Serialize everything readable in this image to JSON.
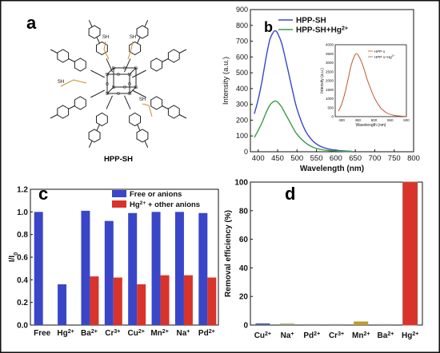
{
  "panel_labels": {
    "a": "a",
    "b": "b",
    "c": "c",
    "d": "d"
  },
  "structure": {
    "name": "HPP-SH",
    "atom_labels": {
      "si": "Si",
      "o": "O",
      "sh": "SH"
    }
  },
  "colors": {
    "blue": "#3a46c8",
    "green": "#3e9a4a",
    "inset_line": "#c0562c",
    "bar_blue": "#3a46c8",
    "bar_red": "#d9342b",
    "bar_red_dark": "#b5553d",
    "frame": "#111111"
  },
  "chart_data": [
    {
      "panel": "b",
      "type": "line",
      "xlabel": "Wavelength (nm)",
      "ylabel": "Intensity (a.u.)",
      "xlim": [
        380,
        800
      ],
      "ylim": [
        0,
        900
      ],
      "xticks": [
        400,
        450,
        500,
        550,
        600,
        650,
        700,
        750,
        800
      ],
      "yticks": [
        0,
        100,
        200,
        300,
        400,
        500,
        600,
        700,
        800,
        900
      ],
      "legend_position": "top-right",
      "series": [
        {
          "name": "HPP-SH",
          "color": "#3a46c8",
          "x": [
            390,
            400,
            410,
            420,
            430,
            440,
            445,
            450,
            460,
            470,
            480,
            490,
            500,
            520,
            540,
            560,
            580,
            600,
            620,
            640
          ],
          "y": [
            240,
            330,
            450,
            590,
            710,
            760,
            765,
            750,
            690,
            590,
            480,
            370,
            270,
            140,
            70,
            35,
            18,
            10,
            5,
            3
          ]
        },
        {
          "name": "HPP-SH+Hg2+",
          "label_parts": {
            "base": "HPP-SH+Hg",
            "sup": "2+"
          },
          "color": "#3e9a4a",
          "x": [
            390,
            400,
            410,
            420,
            430,
            440,
            445,
            450,
            460,
            470,
            480,
            490,
            500,
            520,
            540,
            560,
            580,
            600,
            620,
            640
          ],
          "y": [
            90,
            135,
            185,
            245,
            295,
            318,
            320,
            315,
            285,
            240,
            195,
            150,
            110,
            60,
            30,
            15,
            8,
            5,
            3,
            2
          ]
        }
      ],
      "inset": {
        "type": "line",
        "xlabel": "Wavelength (nm)",
        "ylabel": "Intensity (a.u.)",
        "xlim": [
          380,
          600
        ],
        "ylim": [
          0,
          4000
        ],
        "xticks": [
          400,
          450,
          500,
          550,
          600
        ],
        "yticks": [
          0,
          500,
          1000,
          1500,
          2000,
          2500,
          3000,
          3500,
          4000
        ],
        "legend": [
          "HPP-1",
          "HPP-1+Hg2+"
        ],
        "legend_parts": [
          {
            "base": "HPP-1",
            "sup": ""
          },
          {
            "base": "HPP-1+Hg",
            "sup": "2+"
          }
        ],
        "series": [
          {
            "name": "HPP-1",
            "color": "#c0562c",
            "x": [
              390,
              400,
              410,
              420,
              430,
              440,
              445,
              450,
              460,
              470,
              480,
              500,
              520,
              540,
              560,
              580,
              600
            ],
            "y": [
              300,
              700,
              1300,
              2100,
              2900,
              3400,
              3500,
              3450,
              3100,
              2600,
              2000,
              1100,
              500,
              200,
              80,
              30,
              10
            ]
          }
        ]
      }
    },
    {
      "panel": "c",
      "type": "bar",
      "ylabel": "I/I0",
      "ylabel_parts": {
        "base": "I/I",
        "sub": "0"
      },
      "ylim": [
        0,
        1.2
      ],
      "yticks": [
        "0.0",
        "0.2",
        "0.4",
        "0.6",
        "0.8",
        "1.0",
        "1.2"
      ],
      "categories": [
        "Free",
        "Hg2+",
        "Ba2+",
        "Cr3+",
        "Cu2+",
        "Mn2+",
        "Na+",
        "Pd2+"
      ],
      "category_parts": [
        {
          "base": "Free",
          "sup": ""
        },
        {
          "base": "Hg",
          "sup": "2+"
        },
        {
          "base": "Ba",
          "sup": "2+"
        },
        {
          "base": "Cr",
          "sup": "3+"
        },
        {
          "base": "Cu",
          "sup": "2+"
        },
        {
          "base": "Mn",
          "sup": "2+"
        },
        {
          "base": "Na",
          "sup": "+"
        },
        {
          "base": "Pd",
          "sup": "2+"
        }
      ],
      "legend_position": "top-right",
      "series": [
        {
          "name": "Free or anions",
          "color": "#3a46c8",
          "values": [
            1.0,
            0.36,
            1.01,
            0.92,
            0.99,
            1.0,
            1.0,
            0.99
          ]
        },
        {
          "name": "Hg2+ + other anions",
          "label_parts": {
            "base": "Hg",
            "sup": "2+",
            "rest": " + other anions"
          },
          "color": "#d9342b",
          "values": [
            null,
            null,
            0.43,
            0.42,
            0.36,
            0.44,
            0.44,
            0.42
          ]
        }
      ]
    },
    {
      "panel": "d",
      "type": "bar",
      "ylabel": "Removal efficiency (%)",
      "ylim": [
        0,
        100
      ],
      "yticks": [
        0,
        20,
        40,
        60,
        80,
        100
      ],
      "categories": [
        "Cu2+",
        "Na+",
        "Pd2+",
        "Cr3+",
        "Mn2+",
        "Ba2+",
        "Hg2+"
      ],
      "category_parts": [
        {
          "base": "Cu",
          "sup": "2+"
        },
        {
          "base": "Na",
          "sup": "+"
        },
        {
          "base": "Pd",
          "sup": "2+"
        },
        {
          "base": "Cr",
          "sup": "3+"
        },
        {
          "base": "Mn",
          "sup": "2+"
        },
        {
          "base": "Ba",
          "sup": "2+"
        },
        {
          "base": "Hg",
          "sup": "2+"
        }
      ],
      "values": [
        1.2,
        1.0,
        0.3,
        0.3,
        2.5,
        0.3,
        100
      ],
      "colors": [
        "#5562a8",
        "#8aa66a",
        "#999999",
        "#999999",
        "#b8a030",
        "#999999",
        "#d9342b"
      ]
    }
  ]
}
